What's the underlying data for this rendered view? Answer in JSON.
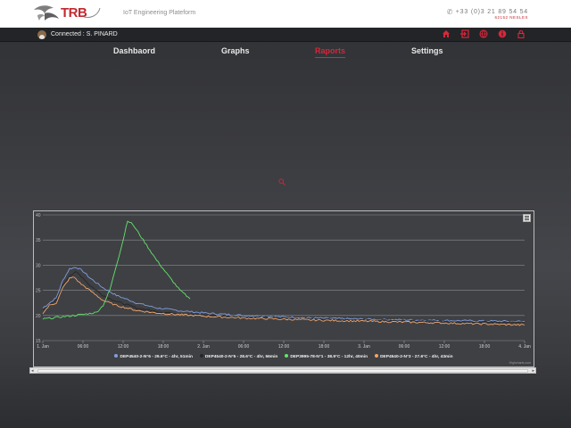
{
  "header": {
    "logo_text": "TRB",
    "tagline": "IoT Engineering Plateform",
    "phone": "+33 (0)3 21 89 54 54",
    "address": "62152 NESLES"
  },
  "topbar": {
    "connected": "Connected : S. PINARD",
    "icons": [
      "home-icon",
      "login-icon",
      "globe-icon",
      "info-icon",
      "lock-icon"
    ]
  },
  "nav": {
    "items": [
      {
        "label": "Dashbaord",
        "active": false
      },
      {
        "label": "Graphs",
        "active": false
      },
      {
        "label": "Raports",
        "active": true
      },
      {
        "label": "Settings",
        "active": false
      }
    ]
  },
  "chart_data": {
    "type": "line",
    "credit": "Highcharts.com",
    "y_ticks": [
      "15",
      "20",
      "25",
      "30",
      "35",
      "40"
    ],
    "ylim": [
      15,
      40
    ],
    "x_ticks": [
      "1. Jan",
      "06:00",
      "12:00",
      "18:00",
      "2. Jan",
      "06:00",
      "12:00",
      "18:00",
      "3. Jan",
      "06:00",
      "12:00",
      "18:00",
      "4. Jan"
    ],
    "xlim_hours": [
      0,
      72
    ],
    "grid": true,
    "legend_position": "bottom",
    "series": [
      {
        "name": "DEP4540-2-N°6 - 29.6°C - 4hr, 51min",
        "color": "#7f9ee0",
        "points": [
          [
            0,
            21.5
          ],
          [
            1,
            22.5
          ],
          [
            2,
            23.5
          ],
          [
            3,
            27
          ],
          [
            4,
            29.3
          ],
          [
            5,
            29.6
          ],
          [
            6,
            28.8
          ],
          [
            7,
            27.5
          ],
          [
            9,
            25.5
          ],
          [
            11,
            24
          ],
          [
            14,
            22.5
          ],
          [
            17,
            21.5
          ],
          [
            20,
            21
          ],
          [
            25,
            20.4
          ],
          [
            30,
            20
          ],
          [
            40,
            19.5
          ],
          [
            50,
            19.2
          ],
          [
            60,
            19
          ],
          [
            66,
            18.9
          ],
          [
            72,
            18.8
          ]
        ]
      },
      {
        "name": "DEP4540-2-N°5 - 28.6°C - 4hr, 56min",
        "color": "#262626",
        "points": [
          [
            0,
            21
          ],
          [
            1,
            22
          ],
          [
            2,
            23
          ],
          [
            3,
            26
          ],
          [
            4,
            28
          ],
          [
            5,
            28.6
          ],
          [
            6,
            27.5
          ],
          [
            7,
            26
          ],
          [
            9,
            24
          ],
          [
            11,
            22.8
          ],
          [
            14,
            21.5
          ],
          [
            17,
            20.8
          ],
          [
            20,
            20.4
          ],
          [
            25,
            20
          ],
          [
            30,
            19.7
          ],
          [
            40,
            19.3
          ],
          [
            50,
            19
          ],
          [
            60,
            18.8
          ],
          [
            66,
            18.7
          ],
          [
            72,
            18.6
          ]
        ]
      },
      {
        "name": "DEP3995-78-N°1 - 38.9°C - 12hr, 40min",
        "color": "#63e36b",
        "points": [
          [
            0,
            19.3
          ],
          [
            2,
            19.6
          ],
          [
            4,
            19.9
          ],
          [
            6,
            20.2
          ],
          [
            8,
            20.6
          ],
          [
            9,
            22
          ],
          [
            10,
            25
          ],
          [
            11,
            30
          ],
          [
            12,
            35
          ],
          [
            12.67,
            38.9
          ],
          [
            13.5,
            38
          ],
          [
            15,
            35
          ],
          [
            17,
            31
          ],
          [
            19,
            27.5
          ],
          [
            20.5,
            25
          ],
          [
            22,
            23.3
          ]
        ]
      },
      {
        "name": "DEP4540-2-N°3 - 27.6°C - 4hr, 43min",
        "color": "#f0a56a",
        "points": [
          [
            0,
            20.5
          ],
          [
            1,
            22
          ],
          [
            2,
            22.5
          ],
          [
            3,
            25.5
          ],
          [
            4,
            27.4
          ],
          [
            4.72,
            27.6
          ],
          [
            5.5,
            26.5
          ],
          [
            7,
            25
          ],
          [
            9,
            23
          ],
          [
            11,
            22
          ],
          [
            14,
            21
          ],
          [
            17,
            20.5
          ],
          [
            20,
            20.2
          ],
          [
            25,
            19.8
          ],
          [
            30,
            19.5
          ],
          [
            40,
            19.1
          ],
          [
            50,
            18.8
          ],
          [
            60,
            18.5
          ],
          [
            66,
            18.3
          ],
          [
            72,
            18.1
          ]
        ]
      }
    ]
  },
  "scrollbar": {
    "left": "◂",
    "right": "▸"
  }
}
